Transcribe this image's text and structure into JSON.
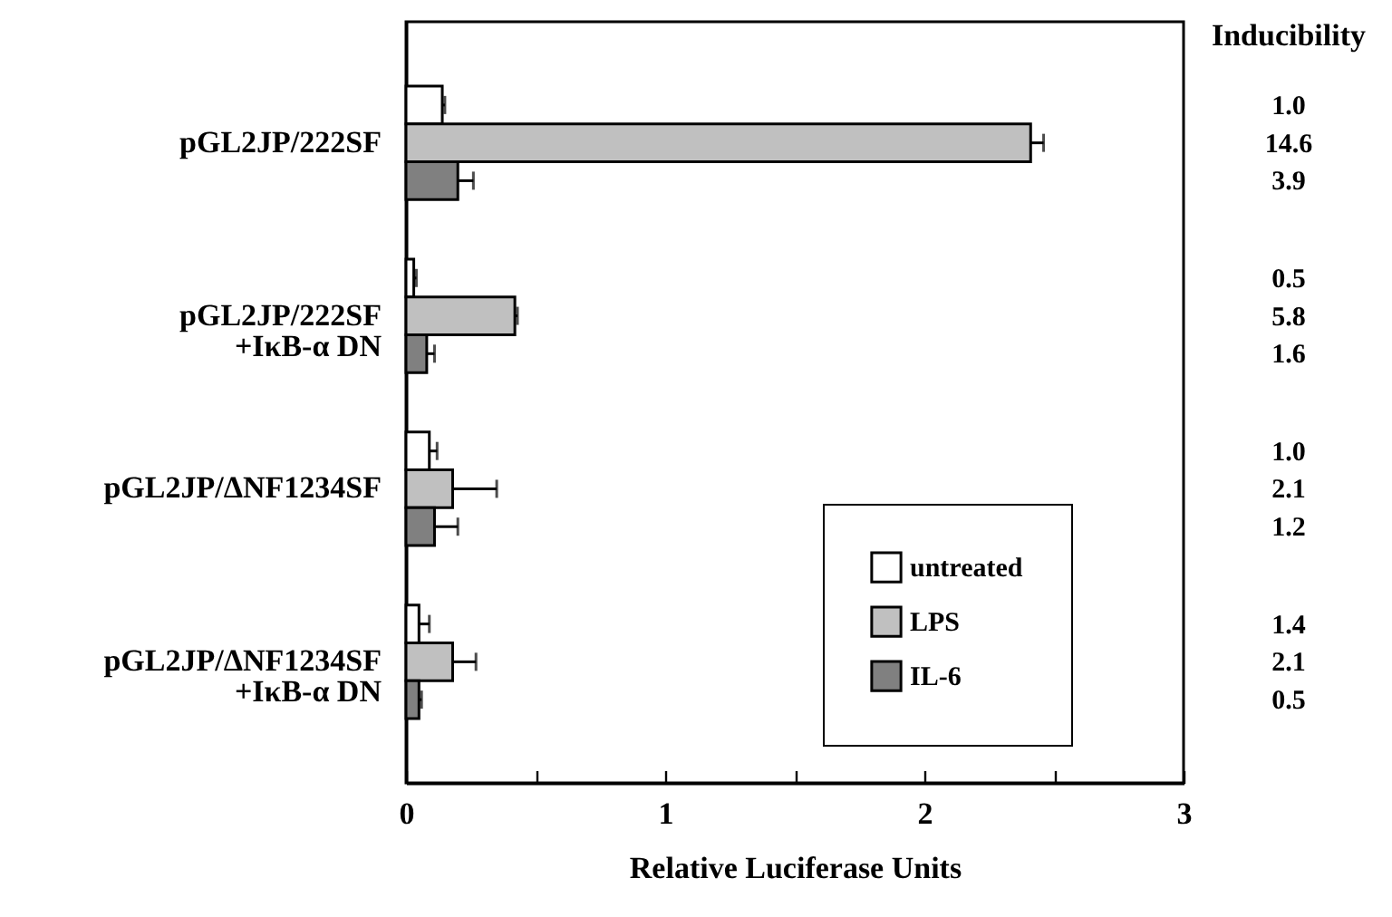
{
  "chart_data": {
    "type": "bar",
    "orientation": "horizontal",
    "xlabel": "Relative Luciferase Units",
    "categories": [
      "pGL2JP/222SF",
      "pGL2JP/222SF\n+IκB-α DN",
      "pGL2JP/ΔNF1234SF",
      "pGL2JP/ΔNF1234SF\n+IκB-α DN"
    ],
    "series": [
      {
        "name": "untreated",
        "color": "#ffffff",
        "values": [
          0.14,
          0.03,
          0.09,
          0.05
        ],
        "errors": [
          [
            0.14,
            0.15
          ],
          [
            0.03,
            0.04
          ],
          [
            0.09,
            0.12
          ],
          [
            0.05,
            0.09
          ]
        ]
      },
      {
        "name": "LPS",
        "color": "#c0c0c0",
        "values": [
          2.41,
          0.42,
          0.18,
          0.18
        ],
        "errors": [
          [
            2.41,
            2.46
          ],
          [
            0.42,
            0.43
          ],
          [
            0.18,
            0.35
          ],
          [
            0.18,
            0.27
          ]
        ]
      },
      {
        "name": "IL-6",
        "color": "#808080",
        "values": [
          0.2,
          0.08,
          0.11,
          0.05
        ],
        "errors": [
          [
            0.2,
            0.26
          ],
          [
            0.08,
            0.11
          ],
          [
            0.11,
            0.2
          ],
          [
            0.05,
            0.06
          ]
        ]
      }
    ],
    "xlim": [
      0,
      3
    ],
    "xticks": [
      0,
      {
        "value": 0.5,
        "label": null
      },
      1,
      {
        "value": 1.5,
        "label": null
      },
      2,
      {
        "value": 2.5,
        "label": null
      },
      3
    ],
    "grid": false,
    "legend": "bottom right",
    "annotations": [
      "Inducibility",
      "1.0",
      "14.6",
      "3.9",
      "0.5",
      "5.8",
      "1.6",
      "1.0",
      "2.1",
      "1.2",
      "1.4",
      "2.1",
      "0.5"
    ]
  }
}
